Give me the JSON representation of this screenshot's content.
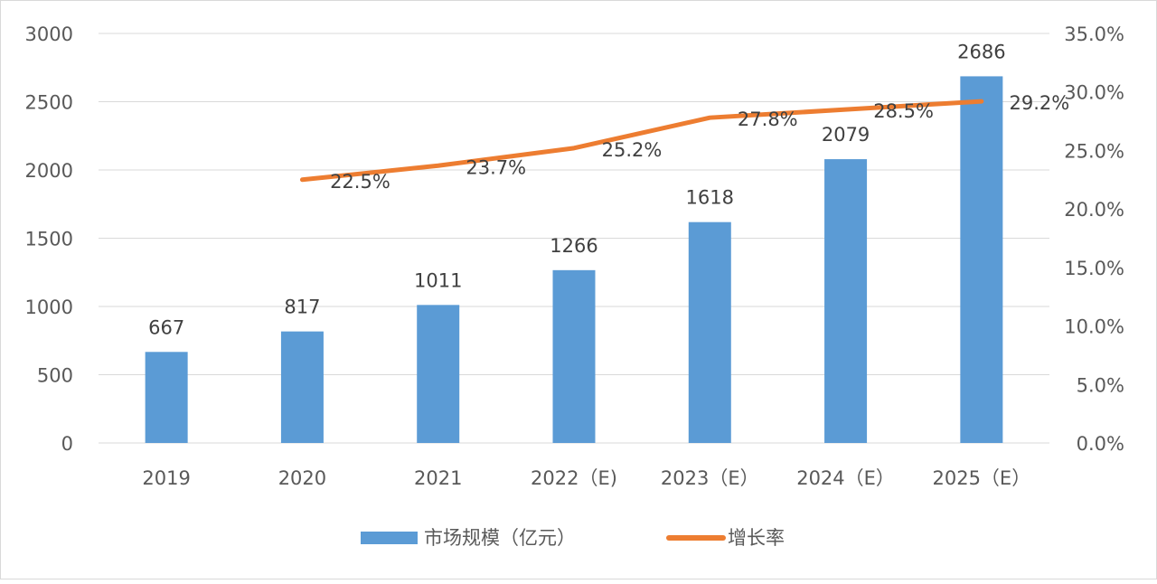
{
  "chart_data": {
    "type": "bar+line",
    "categories": [
      "2019",
      "2020",
      "2021",
      "2022（E)",
      "2023（E）",
      "2024（E）",
      "2025（E）"
    ],
    "series": [
      {
        "name": "市场规模（亿元）",
        "type": "bar",
        "axis": "left",
        "color": "#5b9bd5",
        "values": [
          667,
          817,
          1011,
          1266,
          1618,
          2079,
          2686
        ],
        "labels": [
          "667",
          "817",
          "1011",
          "1266",
          "1618",
          "2079",
          "2686"
        ]
      },
      {
        "name": "增长率",
        "type": "line",
        "axis": "right",
        "color": "#ed7d31",
        "values": [
          null,
          22.5,
          23.7,
          25.2,
          27.8,
          28.5,
          29.2
        ],
        "labels": [
          "",
          "22.5%",
          "23.7%",
          "25.2%",
          "27.8%",
          "28.5%",
          "29.2%"
        ]
      }
    ],
    "left_axis": {
      "ylim": [
        0,
        3000
      ],
      "ticks": [
        "0",
        "500",
        "1000",
        "1500",
        "2000",
        "2500",
        "3000"
      ]
    },
    "right_axis": {
      "ylim": [
        0,
        35
      ],
      "ticks": [
        "0.0%",
        "5.0%",
        "10.0%",
        "15.0%",
        "20.0%",
        "25.0%",
        "30.0%",
        "35.0%"
      ]
    },
    "grid": true,
    "legend": "bottom"
  }
}
